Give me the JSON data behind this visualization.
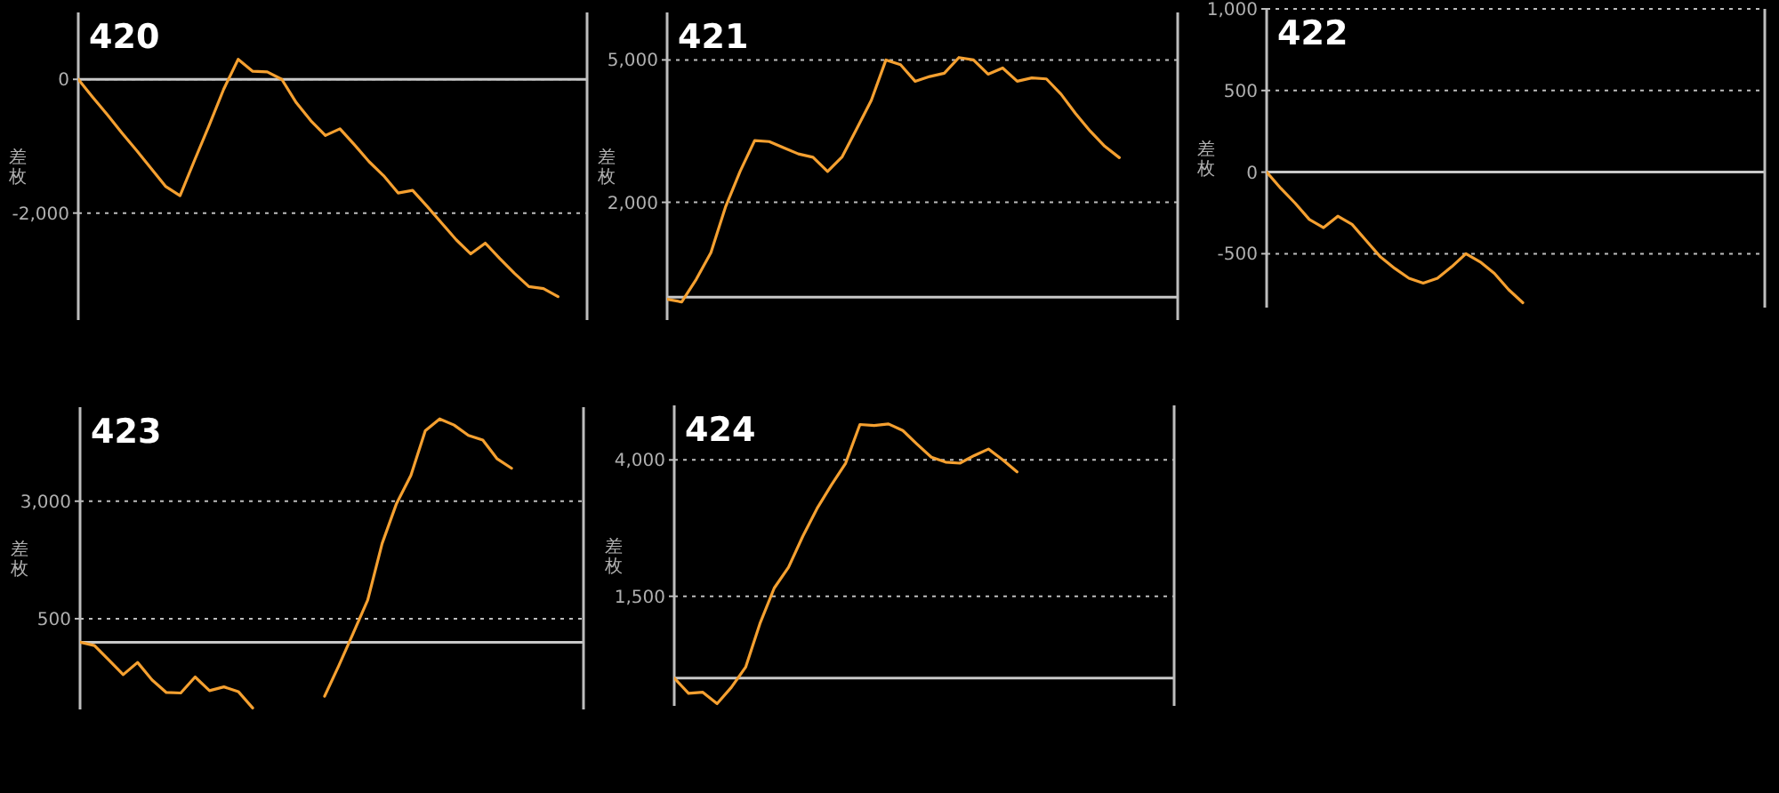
{
  "chart_data": [
    {
      "type": "line",
      "title": "420",
      "ylabel": "差枚",
      "categories": [
        null,
        null,
        null,
        null,
        null,
        null,
        null,
        null,
        null,
        null,
        null,
        null,
        null,
        null,
        null,
        null,
        null,
        null,
        null,
        null,
        null,
        null,
        null,
        null,
        null,
        null,
        null,
        null,
        null,
        null,
        null,
        null,
        null,
        null,
        null,
        null
      ],
      "series": [
        {
          "color": "#f5a030",
          "values": [
            0,
            -270,
            -530,
            -800,
            -1060,
            -1330,
            -1600,
            -1740,
            -1210,
            -690,
            -150,
            300,
            120,
            110,
            0,
            -350,
            -620,
            -840,
            -740,
            -980,
            -1230,
            -1440,
            -1700,
            -1660,
            -1900,
            -2150,
            -2400,
            -2610,
            -2450,
            -2680,
            -2900,
            -3100,
            -3130,
            -3250,
            null,
            null
          ]
        }
      ],
      "ylim": [
        -3600,
        1000
      ],
      "yticks": [
        0,
        {
          "value": -2000,
          "label": "-2,000"
        }
      ],
      "grid": "y",
      "ref_lines": [
        {
          "axis": "y",
          "value": 0,
          "color": "#c8c8c8"
        }
      ],
      "tick_labels": "y",
      "line_style": "solid"
    },
    {
      "type": "line",
      "title": "421",
      "ylabel": "差枚",
      "categories": [
        null,
        null,
        null,
        null,
        null,
        null,
        null,
        null,
        null,
        null,
        null,
        null,
        null,
        null,
        null,
        null,
        null,
        null,
        null,
        null,
        null,
        null,
        null,
        null,
        null,
        null,
        null,
        null,
        null,
        null,
        null,
        null,
        null,
        null,
        null,
        null
      ],
      "series": [
        {
          "color": "#f5a030",
          "values": [
            -40,
            -100,
            380,
            940,
            1900,
            2650,
            3300,
            3280,
            3150,
            3020,
            2950,
            2650,
            2960,
            3550,
            4150,
            5000,
            4900,
            4550,
            4650,
            4720,
            5050,
            5000,
            4700,
            4830,
            4550,
            4620,
            4600,
            4280,
            3870,
            3500,
            3180,
            2940,
            null,
            null,
            null,
            null
          ]
        }
      ],
      "ylim": [
        -480,
        6000
      ],
      "yticks": [
        {
          "value": 5000,
          "label": "5,000"
        },
        {
          "value": 2000,
          "label": "2,000"
        }
      ],
      "grid": "y",
      "ref_lines": [
        {
          "axis": "y",
          "value": 0,
          "color": "#c8c8c8"
        }
      ],
      "tick_labels": "y",
      "line_style": "solid"
    },
    {
      "type": "line",
      "title": "422",
      "ylabel": "差枚",
      "categories": [
        null,
        null,
        null,
        null,
        null,
        null,
        null,
        null,
        null,
        null,
        null,
        null,
        null,
        null,
        null,
        null,
        null,
        null,
        null,
        null,
        null,
        null,
        null,
        null,
        null,
        null,
        null,
        null,
        null,
        null,
        null,
        null,
        null,
        null,
        null,
        null
      ],
      "series": [
        {
          "color": "#f5a030",
          "values": [
            0,
            -100,
            -190,
            -290,
            -340,
            -270,
            -320,
            -420,
            -520,
            -590,
            -650,
            -680,
            -650,
            -580,
            -500,
            -550,
            -620,
            -720,
            -800,
            null,
            null,
            null,
            null,
            null,
            null,
            null,
            null,
            null,
            null,
            null,
            null,
            null,
            null,
            null,
            null,
            null
          ]
        }
      ],
      "ylim": [
        -830,
        1000
      ],
      "yticks": [
        {
          "value": 1000,
          "label": "1,000"
        },
        500,
        0,
        -500
      ],
      "grid": "y",
      "ref_lines": [
        {
          "axis": "y",
          "value": 0,
          "color": "#c8c8c8"
        }
      ],
      "tick_labels": "y",
      "line_style": "solid"
    },
    {
      "type": "line",
      "title": "423",
      "ylabel": "差枚",
      "categories": [
        null,
        null,
        null,
        null,
        null,
        null,
        null,
        null,
        null,
        null,
        null,
        null,
        null,
        null,
        null,
        null,
        null,
        null,
        null,
        null,
        null,
        null,
        null,
        null,
        null,
        null,
        null,
        null,
        null,
        null,
        null,
        null,
        null,
        null,
        null,
        null
      ],
      "series": [
        {
          "color": "#f5a030",
          "values": [
            0,
            -70,
            -380,
            -690,
            -430,
            -800,
            -1070,
            -1080,
            -740,
            -1030,
            -950,
            -1050,
            -1400,
            null,
            null,
            null,
            null,
            -1150,
            -490,
            200,
            900,
            2100,
            2950,
            3550,
            4500,
            4750,
            4620,
            4400,
            4300,
            3900,
            3700,
            null,
            null,
            null,
            null,
            null
          ]
        }
      ],
      "ylim": [
        -1430,
        5000
      ],
      "yticks": [
        {
          "value": 3000,
          "label": "3,000"
        },
        500
      ],
      "grid": "y",
      "ref_lines": [
        {
          "axis": "y",
          "value": 0,
          "color": "#c8c8c8"
        }
      ],
      "tick_labels": "y",
      "line_style": "solid"
    },
    {
      "type": "line",
      "title": "424",
      "ylabel": "差枚",
      "categories": [
        null,
        null,
        null,
        null,
        null,
        null,
        null,
        null,
        null,
        null,
        null,
        null,
        null,
        null,
        null,
        null,
        null,
        null,
        null,
        null,
        null,
        null,
        null,
        null,
        null,
        null,
        null,
        null,
        null,
        null,
        null,
        null,
        null,
        null,
        null,
        null
      ],
      "series": [
        {
          "color": "#f5a030",
          "values": [
            0,
            -280,
            -260,
            -470,
            -170,
            200,
            1000,
            1650,
            2030,
            2600,
            3110,
            3540,
            3940,
            4650,
            4630,
            4660,
            4540,
            4290,
            4050,
            3960,
            3940,
            4080,
            4200,
            4000,
            3780,
            null,
            null,
            null,
            null,
            null,
            null,
            null,
            null,
            null,
            null,
            null
          ]
        }
      ],
      "ylim": [
        -510,
        5000
      ],
      "yticks": [
        {
          "value": 4000,
          "label": "4,000"
        },
        {
          "value": 1500,
          "label": "1,500"
        }
      ],
      "grid": "y",
      "ref_lines": [
        {
          "axis": "y",
          "value": 0,
          "color": "#c8c8c8"
        }
      ],
      "tick_labels": "y",
      "line_style": "solid"
    }
  ]
}
